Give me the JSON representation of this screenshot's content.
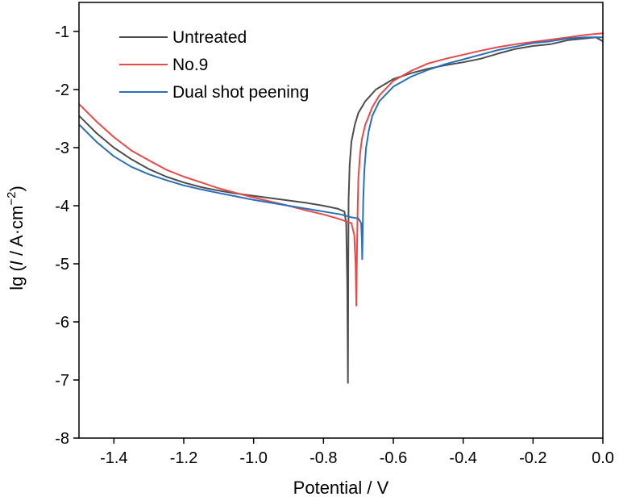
{
  "chart_data": {
    "type": "line",
    "xlabel": "Potential / V",
    "ylabel_parts": {
      "prefix": "lg (",
      "italic": "I",
      "middle": " / A·cm",
      "superscript": "−2",
      "suffix": ")"
    },
    "xlim": [
      -1.5,
      0.0
    ],
    "ylim": [
      -8,
      -0.5
    ],
    "x_ticks": [
      -1.4,
      -1.2,
      -1.0,
      -0.8,
      -0.6,
      -0.4,
      -0.2,
      0.0
    ],
    "x_tick_labels": [
      "-1.4",
      "-1.2",
      "-1.0",
      "-0.8",
      "-0.6",
      "-0.4",
      "-0.2",
      "0.0"
    ],
    "y_ticks": [
      -8,
      -7,
      -6,
      -5,
      -4,
      -3,
      -2,
      -1
    ],
    "y_tick_labels": [
      "-8",
      "-7",
      "-6",
      "-5",
      "-4",
      "-3",
      "-2",
      "-1"
    ],
    "grid": false,
    "legend_position": "top-left",
    "series": [
      {
        "name": "Untreated",
        "color": "#4d4d4d",
        "points": [
          [
            -1.5,
            -2.45
          ],
          [
            -1.45,
            -2.75
          ],
          [
            -1.4,
            -3.0
          ],
          [
            -1.35,
            -3.2
          ],
          [
            -1.3,
            -3.37
          ],
          [
            -1.25,
            -3.5
          ],
          [
            -1.2,
            -3.6
          ],
          [
            -1.15,
            -3.68
          ],
          [
            -1.1,
            -3.74
          ],
          [
            -1.05,
            -3.79
          ],
          [
            -1.0,
            -3.83
          ],
          [
            -0.95,
            -3.87
          ],
          [
            -0.9,
            -3.91
          ],
          [
            -0.85,
            -3.95
          ],
          [
            -0.8,
            -4.0
          ],
          [
            -0.76,
            -4.05
          ],
          [
            -0.74,
            -4.1
          ],
          [
            -0.735,
            -4.3
          ],
          [
            -0.732,
            -5.3
          ],
          [
            -0.73,
            -7.05
          ],
          [
            -0.729,
            -5.0
          ],
          [
            -0.728,
            -3.9
          ],
          [
            -0.725,
            -3.3
          ],
          [
            -0.72,
            -2.9
          ],
          [
            -0.71,
            -2.6
          ],
          [
            -0.7,
            -2.4
          ],
          [
            -0.68,
            -2.2
          ],
          [
            -0.65,
            -2.0
          ],
          [
            -0.6,
            -1.82
          ],
          [
            -0.55,
            -1.72
          ],
          [
            -0.5,
            -1.64
          ],
          [
            -0.45,
            -1.58
          ],
          [
            -0.4,
            -1.53
          ],
          [
            -0.35,
            -1.47
          ],
          [
            -0.3,
            -1.38
          ],
          [
            -0.25,
            -1.3
          ],
          [
            -0.2,
            -1.25
          ],
          [
            -0.15,
            -1.22
          ],
          [
            -0.1,
            -1.15
          ],
          [
            -0.05,
            -1.12
          ],
          [
            -0.02,
            -1.1
          ],
          [
            0.0,
            -1.17
          ]
        ]
      },
      {
        "name": "No.9",
        "color": "#e84a4a",
        "points": [
          [
            -1.5,
            -2.25
          ],
          [
            -1.45,
            -2.55
          ],
          [
            -1.4,
            -2.82
          ],
          [
            -1.35,
            -3.05
          ],
          [
            -1.3,
            -3.22
          ],
          [
            -1.25,
            -3.38
          ],
          [
            -1.2,
            -3.5
          ],
          [
            -1.15,
            -3.6
          ],
          [
            -1.1,
            -3.7
          ],
          [
            -1.05,
            -3.78
          ],
          [
            -1.0,
            -3.86
          ],
          [
            -0.95,
            -3.93
          ],
          [
            -0.9,
            -4.0
          ],
          [
            -0.85,
            -4.08
          ],
          [
            -0.8,
            -4.15
          ],
          [
            -0.76,
            -4.22
          ],
          [
            -0.72,
            -4.3
          ],
          [
            -0.712,
            -4.5
          ],
          [
            -0.708,
            -5.0
          ],
          [
            -0.706,
            -5.72
          ],
          [
            -0.704,
            -4.8
          ],
          [
            -0.702,
            -4.0
          ],
          [
            -0.7,
            -3.5
          ],
          [
            -0.695,
            -3.1
          ],
          [
            -0.69,
            -2.85
          ],
          [
            -0.68,
            -2.6
          ],
          [
            -0.66,
            -2.3
          ],
          [
            -0.64,
            -2.1
          ],
          [
            -0.6,
            -1.85
          ],
          [
            -0.55,
            -1.68
          ],
          [
            -0.5,
            -1.55
          ],
          [
            -0.45,
            -1.47
          ],
          [
            -0.4,
            -1.4
          ],
          [
            -0.35,
            -1.33
          ],
          [
            -0.3,
            -1.27
          ],
          [
            -0.25,
            -1.22
          ],
          [
            -0.2,
            -1.18
          ],
          [
            -0.15,
            -1.14
          ],
          [
            -0.1,
            -1.1
          ],
          [
            -0.05,
            -1.06
          ],
          [
            0.0,
            -1.03
          ]
        ]
      },
      {
        "name": "Dual shot peening",
        "color": "#2a6fba",
        "points": [
          [
            -1.5,
            -2.6
          ],
          [
            -1.45,
            -2.9
          ],
          [
            -1.4,
            -3.15
          ],
          [
            -1.35,
            -3.33
          ],
          [
            -1.3,
            -3.46
          ],
          [
            -1.25,
            -3.56
          ],
          [
            -1.2,
            -3.65
          ],
          [
            -1.15,
            -3.72
          ],
          [
            -1.1,
            -3.78
          ],
          [
            -1.05,
            -3.84
          ],
          [
            -1.0,
            -3.9
          ],
          [
            -0.95,
            -3.95
          ],
          [
            -0.9,
            -4.0
          ],
          [
            -0.85,
            -4.05
          ],
          [
            -0.8,
            -4.1
          ],
          [
            -0.75,
            -4.15
          ],
          [
            -0.72,
            -4.2
          ],
          [
            -0.7,
            -4.22
          ],
          [
            -0.692,
            -4.3
          ],
          [
            -0.69,
            -4.6
          ],
          [
            -0.689,
            -4.92
          ],
          [
            -0.688,
            -4.5
          ],
          [
            -0.686,
            -3.9
          ],
          [
            -0.683,
            -3.4
          ],
          [
            -0.678,
            -3.0
          ],
          [
            -0.67,
            -2.7
          ],
          [
            -0.66,
            -2.45
          ],
          [
            -0.64,
            -2.2
          ],
          [
            -0.6,
            -1.95
          ],
          [
            -0.55,
            -1.78
          ],
          [
            -0.5,
            -1.66
          ],
          [
            -0.45,
            -1.56
          ],
          [
            -0.4,
            -1.48
          ],
          [
            -0.35,
            -1.4
          ],
          [
            -0.3,
            -1.32
          ],
          [
            -0.25,
            -1.26
          ],
          [
            -0.2,
            -1.2
          ],
          [
            -0.15,
            -1.17
          ],
          [
            -0.1,
            -1.12
          ],
          [
            -0.05,
            -1.1
          ],
          [
            0.0,
            -1.1
          ]
        ]
      }
    ]
  }
}
